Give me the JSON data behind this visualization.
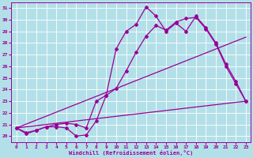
{
  "xlabel": "Windchill (Refroidissement éolien,°C)",
  "bg_color": "#b3e0e8",
  "line_color": "#990099",
  "grid_color": "#ffffff",
  "xlim": [
    -0.5,
    23.5
  ],
  "ylim": [
    19.5,
    31.5
  ],
  "yticks": [
    20,
    21,
    22,
    23,
    24,
    25,
    26,
    27,
    28,
    29,
    30,
    31
  ],
  "xticks": [
    0,
    1,
    2,
    3,
    4,
    5,
    6,
    7,
    8,
    9,
    10,
    11,
    12,
    13,
    14,
    15,
    16,
    17,
    18,
    19,
    20,
    21,
    22,
    23
  ],
  "curve1_x": [
    0,
    1,
    2,
    3,
    4,
    5,
    6,
    7,
    8,
    9,
    10,
    11,
    12,
    13,
    14,
    15,
    16,
    17,
    18,
    19,
    20,
    21,
    22,
    23
  ],
  "curve1_y": [
    20.7,
    20.2,
    20.5,
    20.8,
    20.8,
    20.7,
    20.0,
    20.1,
    21.3,
    23.5,
    27.5,
    29.0,
    29.6,
    31.1,
    30.3,
    29.0,
    29.7,
    29.0,
    30.3,
    29.3,
    28.0,
    26.2,
    24.7,
    23.0
  ],
  "curve2_x": [
    0,
    1,
    2,
    3,
    4,
    5,
    6,
    7,
    8,
    9,
    10,
    11,
    12,
    13,
    14,
    15,
    16,
    17,
    18,
    19,
    20,
    21,
    22,
    23
  ],
  "curve2_y": [
    20.7,
    20.3,
    20.5,
    20.8,
    21.0,
    21.1,
    21.0,
    20.7,
    23.0,
    23.5,
    24.1,
    25.6,
    27.2,
    28.6,
    29.5,
    29.1,
    29.8,
    30.1,
    30.2,
    29.2,
    27.9,
    26.0,
    24.5,
    23.0
  ],
  "line1_x": [
    0,
    23
  ],
  "line1_y": [
    20.7,
    28.5
  ],
  "line2_x": [
    0,
    23
  ],
  "line2_y": [
    20.7,
    23.0
  ],
  "straight1_has_markers": false,
  "straight2_has_markers": false
}
